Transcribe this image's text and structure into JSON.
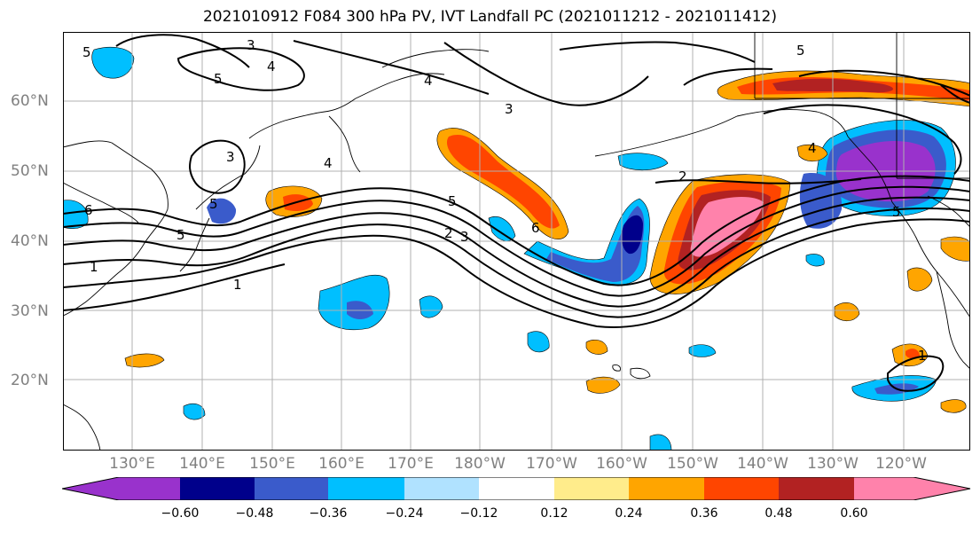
{
  "title": "2021010912 F084 300 hPa PV, IVT Landfall PC (2021011212 - 2021011412)",
  "map": {
    "projection": "PlateCarree",
    "lon_range": [
      "120°E",
      "115°W"
    ],
    "lat_range": [
      10,
      70
    ],
    "gridlines": true,
    "coastlines": true,
    "lon_tick_labels": [
      "130°E",
      "140°E",
      "150°E",
      "160°E",
      "170°E",
      "180°W",
      "170°W",
      "160°W",
      "150°W",
      "140°W",
      "130°W",
      "120°W"
    ],
    "lat_tick_labels": [
      "20°N",
      "30°N",
      "40°N",
      "50°N",
      "60°N"
    ],
    "contour_labels": [
      "5",
      "3",
      "4",
      "5",
      "4",
      "3",
      "5",
      "3",
      "4",
      "6",
      "5",
      "1",
      "5",
      "2",
      "3",
      "6",
      "1",
      "5",
      "2",
      "4",
      "5",
      "1"
    ]
  },
  "colorbar": {
    "colors": [
      "#9932CC",
      "#00008B",
      "#3A5BCB",
      "#00BFFF",
      "#B0E2FF",
      "#FFFFFF",
      "#FFEC8B",
      "#FFA500",
      "#FF4500",
      "#B22222",
      "#FF82AB"
    ],
    "tick_labels": [
      "−0.60",
      "−0.48",
      "−0.36",
      "−0.24",
      "−0.12",
      "0.12",
      "0.24",
      "0.36",
      "0.48",
      "0.60"
    ],
    "extend": "both"
  }
}
